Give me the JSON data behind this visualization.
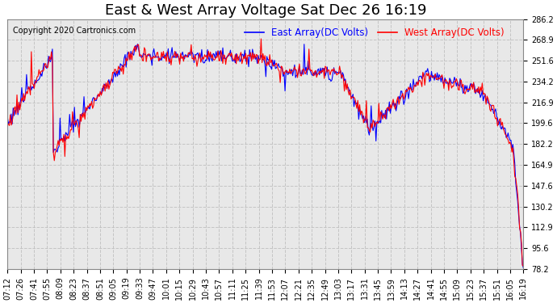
{
  "title": "East & West Array Voltage Sat Dec 26 16:19",
  "copyright": "Copyright 2020 Cartronics.com",
  "east_label": "East Array(DC Volts)",
  "west_label": "West Array(DC Volts)",
  "east_color": "#0000FF",
  "west_color": "#FF0000",
  "bg_color": "#FFFFFF",
  "plot_bg_color": "#E8E8E8",
  "grid_color": "#BBBBBB",
  "yticks": [
    78.2,
    95.6,
    112.9,
    130.2,
    147.6,
    164.9,
    182.2,
    199.6,
    216.9,
    234.2,
    251.6,
    268.9,
    286.2
  ],
  "xtick_labels": [
    "07:12",
    "07:26",
    "07:41",
    "07:55",
    "08:09",
    "08:23",
    "08:37",
    "08:51",
    "09:05",
    "09:19",
    "09:33",
    "09:47",
    "10:01",
    "10:15",
    "10:29",
    "10:43",
    "10:57",
    "11:11",
    "11:25",
    "11:39",
    "11:53",
    "12:07",
    "12:21",
    "12:35",
    "12:49",
    "13:03",
    "13:17",
    "13:31",
    "13:45",
    "13:59",
    "14:13",
    "14:27",
    "14:41",
    "14:55",
    "15:09",
    "15:23",
    "15:37",
    "15:51",
    "16:05",
    "16:19"
  ],
  "linewidth": 0.8,
  "title_fontsize": 13,
  "legend_fontsize": 8.5,
  "tick_fontsize": 7,
  "copyright_fontsize": 7
}
